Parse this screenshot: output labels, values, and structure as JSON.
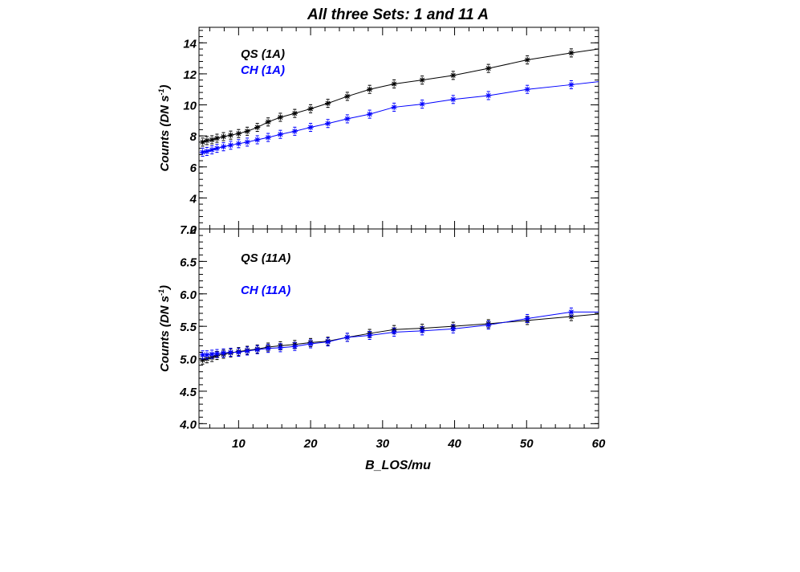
{
  "title": "All three Sets: 1 and 11 A",
  "xlabel": "B_LOS/mu",
  "colors": {
    "qs": "#000000",
    "ch": "#0000ff"
  },
  "chart_data": [
    {
      "type": "line",
      "panel": "top",
      "ylabel": "Counts (DN s",
      "ylabel_sup": "-1",
      "ylabel_close": ")",
      "xlim": [
        4.5,
        60
      ],
      "ylim": [
        2,
        15
      ],
      "x_ticks": [
        10,
        20,
        30,
        40,
        50,
        60
      ],
      "y_ticks": [
        2,
        4,
        6,
        8,
        10,
        12,
        14
      ],
      "y_tick_labels": [
        "2",
        "4",
        "6",
        "8",
        "10",
        "12",
        "14"
      ],
      "legend": "top-left",
      "series": [
        {
          "name": "QS (1A)",
          "color": "#000000",
          "x": [
            5,
            5.6,
            6.3,
            7,
            7.9,
            8.9,
            10,
            11.2,
            12.6,
            14.1,
            15.8,
            17.8,
            20,
            22.4,
            25.1,
            28.2,
            31.6,
            35.5,
            39.8,
            44.7,
            50.1,
            56.2,
            60
          ],
          "y": [
            7.6,
            7.7,
            7.75,
            7.85,
            7.95,
            8.05,
            8.15,
            8.3,
            8.55,
            8.9,
            9.2,
            9.45,
            9.75,
            10.1,
            10.55,
            11.0,
            11.35,
            11.6,
            11.9,
            12.35,
            12.9,
            13.35,
            13.6
          ]
        },
        {
          "name": "CH (1A)",
          "color": "#0000ff",
          "x": [
            5,
            5.6,
            6.3,
            7,
            7.9,
            8.9,
            10,
            11.2,
            12.6,
            14.1,
            15.8,
            17.8,
            20,
            22.4,
            25.1,
            28.2,
            31.6,
            35.5,
            39.8,
            44.7,
            50.1,
            56.2,
            60
          ],
          "y": [
            6.95,
            7.0,
            7.1,
            7.2,
            7.3,
            7.4,
            7.5,
            7.6,
            7.75,
            7.9,
            8.1,
            8.3,
            8.55,
            8.8,
            9.1,
            9.4,
            9.85,
            10.05,
            10.35,
            10.6,
            11.0,
            11.3,
            11.5
          ]
        }
      ]
    },
    {
      "type": "line",
      "panel": "bottom",
      "ylabel": "Counts (DN s",
      "ylabel_sup": "-1",
      "ylabel_close": ")",
      "xlim": [
        4.5,
        60
      ],
      "ylim": [
        3.93,
        7.0
      ],
      "x_ticks": [
        10,
        20,
        30,
        40,
        50,
        60
      ],
      "x_tick_labels": [
        "10",
        "20",
        "30",
        "40",
        "50",
        "60"
      ],
      "y_ticks": [
        4.0,
        4.5,
        5.0,
        5.5,
        6.0,
        6.5,
        7.0
      ],
      "y_tick_labels": [
        "4.0",
        "4.5",
        "5.0",
        "5.5",
        "6.0",
        "6.5",
        "7.0"
      ],
      "legend": "top-left",
      "series": [
        {
          "name": "QS (11A)",
          "color": "#000000",
          "x": [
            5,
            5.6,
            6.3,
            7,
            7.9,
            8.9,
            10,
            11.2,
            12.6,
            14.1,
            15.8,
            17.8,
            20,
            22.4,
            25.1,
            28.2,
            31.6,
            35.5,
            39.8,
            44.7,
            50.1,
            56.2,
            60
          ],
          "y": [
            4.98,
            5.0,
            5.02,
            5.05,
            5.07,
            5.09,
            5.11,
            5.13,
            5.15,
            5.18,
            5.2,
            5.22,
            5.25,
            5.27,
            5.33,
            5.39,
            5.45,
            5.47,
            5.5,
            5.54,
            5.59,
            5.65,
            5.69
          ]
        },
        {
          "name": "CH (11A)",
          "color": "#0000ff",
          "x": [
            5,
            5.6,
            6.3,
            7,
            7.9,
            8.9,
            10,
            11.2,
            12.6,
            14.1,
            15.8,
            17.8,
            20,
            22.4,
            25.1,
            28.2,
            31.6,
            35.5,
            39.8,
            44.7,
            50.1,
            56.2,
            60
          ],
          "y": [
            5.06,
            5.06,
            5.07,
            5.08,
            5.09,
            5.1,
            5.1,
            5.12,
            5.14,
            5.16,
            5.17,
            5.19,
            5.23,
            5.26,
            5.33,
            5.36,
            5.41,
            5.43,
            5.46,
            5.52,
            5.62,
            5.72,
            5.72
          ]
        }
      ]
    }
  ]
}
